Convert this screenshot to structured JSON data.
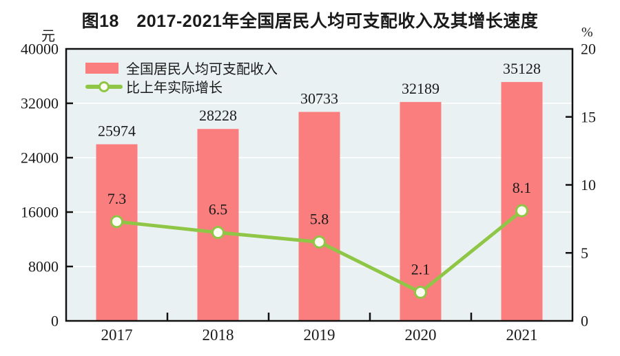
{
  "figure": {
    "title": "图18　2017-2021年全国居民人均可支配收入及其增长速度"
  },
  "axes": {
    "left": {
      "unit": "元",
      "ticks": [
        0,
        8000,
        16000,
        24000,
        32000,
        40000
      ]
    },
    "right": {
      "unit": "%",
      "ticks": [
        0,
        5,
        10,
        15,
        20
      ]
    }
  },
  "legend": {
    "items": [
      {
        "label": "全国居民人均可支配收入",
        "marker": "bar-swatch"
      },
      {
        "label": "比上年实际增长",
        "marker": "line-marker"
      }
    ]
  },
  "chart_data": {
    "type": "combo",
    "title": "图18　2017-2021年全国居民人均可支配收入及其增长速度",
    "categories": [
      "2017",
      "2018",
      "2019",
      "2020",
      "2021"
    ],
    "series": [
      {
        "name": "全国居民人均可支配收入",
        "type": "bar",
        "axis": "left",
        "unit": "元",
        "values": [
          25974,
          28228,
          30733,
          32189,
          35128
        ],
        "value_labels": [
          "25974",
          "28228",
          "30733",
          "32189",
          "35128"
        ]
      },
      {
        "name": "比上年实际增长",
        "type": "line",
        "axis": "right",
        "unit": "%",
        "values": [
          7.3,
          6.5,
          5.8,
          2.1,
          8.1
        ],
        "value_labels": [
          "7.3",
          "6.5",
          "5.8",
          "2.1",
          "8.1"
        ]
      }
    ],
    "left_ylim": [
      0,
      40000
    ],
    "right_ylim": [
      0,
      20
    ],
    "grid": true,
    "legend_position": "top-left"
  },
  "colors": {
    "bar": "#FB7E7E",
    "line": "#8FC645",
    "marker_fill": "#FDFDF1",
    "plot_bg": "#EAF1F3",
    "grid": "#FBFDFD",
    "axis": "#111111",
    "text": "#1A1A1A"
  }
}
